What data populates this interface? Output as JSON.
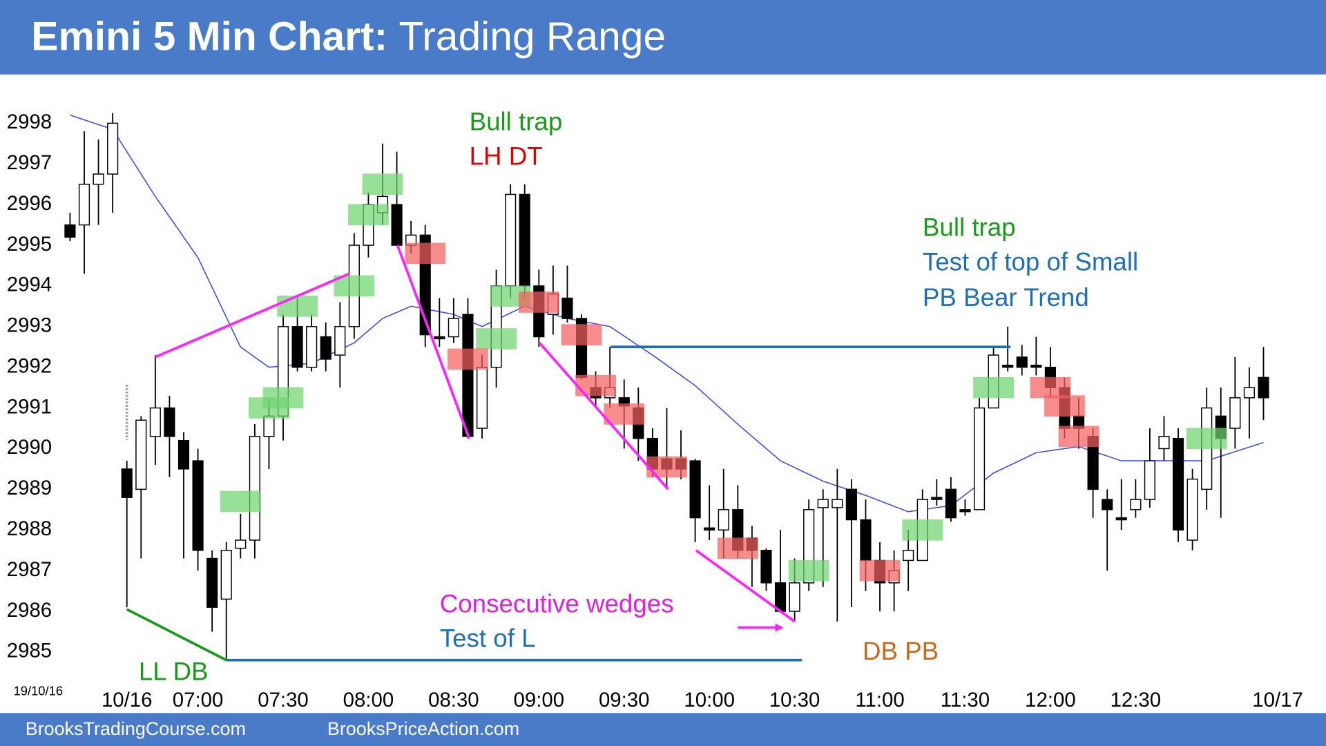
{
  "header": {
    "title_bold": "Emini 5 Min Chart:",
    "title_rest": "Trading Range"
  },
  "chart_data": {
    "type": "candlestick",
    "date_stamp": "19/10/16",
    "xlim": [
      -8.93,
      84.4
    ],
    "ylim": [
      2983.5,
      2998.95
    ],
    "yticks": [
      2985,
      2986,
      2987,
      2988,
      2989,
      2990,
      2991,
      2992,
      2993,
      2994,
      2995,
      2996,
      2997,
      2998
    ],
    "xticks": [
      {
        "value": 0,
        "label": "10/16"
      },
      {
        "value": 5,
        "label": "07:00"
      },
      {
        "value": 11,
        "label": "07:30"
      },
      {
        "value": 17,
        "label": "08:00"
      },
      {
        "value": 23,
        "label": "08:30"
      },
      {
        "value": 29,
        "label": "09:00"
      },
      {
        "value": 35,
        "label": "09:30"
      },
      {
        "value": 41,
        "label": "10:00"
      },
      {
        "value": 47,
        "label": "10:30"
      },
      {
        "value": 53,
        "label": "11:00"
      },
      {
        "value": 59,
        "label": "11:30"
      },
      {
        "value": 65,
        "label": "12:00"
      },
      {
        "value": 71,
        "label": "12:30"
      },
      {
        "value": 81,
        "label": "10/17"
      }
    ],
    "x": [
      -4,
      -3,
      -2,
      -1,
      0,
      1,
      2,
      3,
      4,
      5,
      6,
      7,
      8,
      9,
      10,
      11,
      12,
      13,
      14,
      15,
      16,
      17,
      18,
      19,
      20,
      21,
      22,
      23,
      24,
      25,
      26,
      27,
      28,
      29,
      30,
      31,
      32,
      33,
      34,
      35,
      36,
      37,
      38,
      39,
      40,
      41,
      42,
      43,
      44,
      45,
      46,
      47,
      48,
      49,
      50,
      51,
      52,
      53,
      54,
      55,
      56,
      57,
      58,
      59,
      60,
      61,
      62,
      63,
      64,
      65,
      66,
      67,
      68,
      69,
      70,
      71,
      72,
      73,
      74,
      75,
      76,
      77,
      78,
      79,
      80
    ],
    "open": [
      2995.5,
      2995.5,
      2996.5,
      2996.75,
      2989.5,
      2989,
      2990.3,
      2991,
      2990.2,
      2989.7,
      2987.3,
      2986.3,
      2987.55,
      2987.75,
      2990.3,
      2990.8,
      2993,
      2992,
      2992.75,
      2992.3,
      2993,
      2995,
      2995.8,
      2996,
      2995,
      2995.25,
      2992.75,
      2992.75,
      2993.3,
      2990.5,
      2992,
      2994,
      2996.25,
      2994,
      2993.3,
      2993.7,
      2993.2,
      2991.5,
      2991.25,
      2991.25,
      2991,
      2990.25,
      2989.75,
      2989.75,
      2989.7,
      2988.05,
      2988,
      2988.5,
      2987.8,
      2987.5,
      2986.7,
      2986,
      2986.7,
      2988.55,
      2988.55,
      2989,
      2988.25,
      2987.25,
      2986.7,
      2987.25,
      2987.25,
      2988.8,
      2989,
      2988.5,
      2988.5,
      2991,
      2992.05,
      2992.25,
      2992.05,
      2992,
      2991.5,
      2990.8,
      2990.3,
      2988.75,
      2988.3,
      2988.5,
      2988.75,
      2990,
      2990.25,
      2987.75,
      2989,
      2990.8,
      2990.5,
      2991.25,
      2991.75
    ],
    "high": [
      2995.8,
      2997.8,
      2997.6,
      2998.25,
      2989.7,
      2990.8,
      2992.3,
      2991.3,
      2990.4,
      2990,
      2987.5,
      2987.7,
      2988.4,
      2990.6,
      2991.25,
      2993.3,
      2993.7,
      2993.3,
      2993.1,
      2993.6,
      2995.3,
      2996.3,
      2997.5,
      2997.3,
      2995.6,
      2995.5,
      2993.7,
      2993.7,
      2993.7,
      2992.3,
      2994.4,
      2996.5,
      2996.5,
      2994.4,
      2994.5,
      2994.5,
      2993.3,
      2991.9,
      2992.5,
      2991.7,
      2991.5,
      2990.5,
      2991,
      2990.45,
      2989.75,
      2989.1,
      2989.5,
      2989.1,
      2988.1,
      2987.55,
      2988,
      2987.3,
      2988.75,
      2989,
      2989.5,
      2989.25,
      2988.75,
      2987.7,
      2987.5,
      2988,
      2989,
      2989.25,
      2989.3,
      2988.75,
      2991.25,
      2992.5,
      2993,
      2992.55,
      2992.75,
      2992.5,
      2991.75,
      2991.25,
      2990.5,
      2989,
      2989.25,
      2989.25,
      2990.5,
      2990.8,
      2990.5,
      2989.5,
      2991.5,
      2991.5,
      2992.25,
      2992,
      2992.5
    ],
    "low": [
      2995.1,
      2994.3,
      2995.5,
      2995.8,
      2986.1,
      2987.3,
      2989.6,
      2989.3,
      2987.3,
      2987,
      2985.5,
      2984.8,
      2987.3,
      2987.3,
      2989.5,
      2990.2,
      2991.9,
      2991.9,
      2991.9,
      2991.5,
      2992.7,
      2994.7,
      2995.5,
      2995,
      2994.8,
      2992.5,
      2992.5,
      2992.6,
      2990.25,
      2990.25,
      2991.5,
      2993.7,
      2993.7,
      2992.5,
      2992.8,
      2993.1,
      2991.7,
      2991,
      2991,
      2990,
      2989.7,
      2989.3,
      2989,
      2989.25,
      2987.7,
      2987.75,
      2987.3,
      2987.3,
      2986.6,
      2986.5,
      2986,
      2985.75,
      2986.5,
      2986.6,
      2985.75,
      2986.1,
      2986.5,
      2986,
      2986,
      2986.5,
      2987.25,
      2988.6,
      2988.2,
      2988.35,
      2988.5,
      2991,
      2991.9,
      2991.8,
      2991.8,
      2991.25,
      2990.25,
      2990,
      2988.3,
      2987,
      2988,
      2988.3,
      2988.55,
      2989.7,
      2987.7,
      2987.5,
      2988.5,
      2988.3,
      2990,
      2990.25,
      2990.7
    ],
    "close": [
      2995.2,
      2996.5,
      2996.75,
      2998,
      2988.8,
      2990.7,
      2991,
      2990.3,
      2989.5,
      2987.5,
      2986.1,
      2987.5,
      2987.75,
      2990.3,
      2990.8,
      2993,
      2992,
      2993,
      2992.2,
      2993,
      2995,
      2996,
      2996.2,
      2995,
      2995.25,
      2992.8,
      2992.7,
      2993.2,
      2990.3,
      2992,
      2994,
      2996.25,
      2994,
      2992.75,
      2993.8,
      2993.2,
      2991.75,
      2991.25,
      2991.5,
      2991.05,
      2990.25,
      2989.5,
      2989.5,
      2989.5,
      2988.3,
      2988,
      2988.5,
      2987.5,
      2987.5,
      2986.7,
      2986,
      2986.7,
      2988.5,
      2988.75,
      2988.75,
      2988.25,
      2987.25,
      2986.7,
      2987,
      2987.5,
      2988.75,
      2988.75,
      2988.3,
      2988.45,
      2991,
      2992.3,
      2992,
      2992,
      2992,
      2991.5,
      2990.5,
      2990.5,
      2989,
      2988.5,
      2988.25,
      2988.75,
      2989.7,
      2990.3,
      2988,
      2989.25,
      2991,
      2990.25,
      2991.25,
      2991.5,
      2991.25
    ],
    "ema": {
      "color": "#3d4fe6",
      "x": [
        -4,
        -1,
        2,
        5,
        8,
        10,
        13,
        16,
        18,
        20,
        23,
        25,
        28,
        31,
        34,
        37,
        40,
        43,
        46,
        49,
        52,
        55,
        58,
        61,
        64,
        67,
        70,
        73,
        76,
        80
      ],
      "values": [
        2998.2,
        2997.85,
        2996.2,
        2994.7,
        2992.5,
        2992,
        2992.1,
        2992.6,
        2993.2,
        2993.5,
        2993.3,
        2993,
        2993.5,
        2993.2,
        2993,
        2992.3,
        2991.55,
        2990.6,
        2989.7,
        2989.2,
        2988.85,
        2988.45,
        2988.6,
        2989.4,
        2989.9,
        2990.05,
        2989.7,
        2989.7,
        2989.7,
        2990.15
      ]
    },
    "highlights": [
      {
        "x": 8,
        "y": 2988.7,
        "color": "#6fd46f"
      },
      {
        "x": 10,
        "y": 2991,
        "color": "#6fd46f"
      },
      {
        "x": 11,
        "y": 2991.25,
        "color": "#6fd46f"
      },
      {
        "x": 12,
        "y": 2993.5,
        "color": "#6fd46f"
      },
      {
        "x": 16,
        "y": 2994,
        "color": "#6fd46f"
      },
      {
        "x": 17,
        "y": 2995.75,
        "color": "#6fd46f"
      },
      {
        "x": 18,
        "y": 2996.5,
        "color": "#6fd46f"
      },
      {
        "x": 26,
        "y": 2992.7,
        "color": "#6fd46f"
      },
      {
        "x": 27,
        "y": 2993.75,
        "color": "#6fd46f"
      },
      {
        "x": 48,
        "y": 2987,
        "color": "#6fd46f"
      },
      {
        "x": 56,
        "y": 2988,
        "color": "#6fd46f"
      },
      {
        "x": 61,
        "y": 2991.5,
        "color": "#6fd46f"
      },
      {
        "x": 76,
        "y": 2990.25,
        "color": "#6fd46f"
      },
      {
        "x": 21,
        "y": 2994.8,
        "color": "#f25f5f"
      },
      {
        "x": 24,
        "y": 2992.2,
        "color": "#f25f5f"
      },
      {
        "x": 29,
        "y": 2993.6,
        "color": "#f25f5f"
      },
      {
        "x": 32,
        "y": 2992.8,
        "color": "#f25f5f"
      },
      {
        "x": 33,
        "y": 2991.55,
        "color": "#f25f5f"
      },
      {
        "x": 35,
        "y": 2990.85,
        "color": "#f25f5f"
      },
      {
        "x": 38,
        "y": 2989.55,
        "color": "#f25f5f"
      },
      {
        "x": 43,
        "y": 2987.55,
        "color": "#f25f5f"
      },
      {
        "x": 53,
        "y": 2987,
        "color": "#f25f5f"
      },
      {
        "x": 65,
        "y": 2991.5,
        "color": "#f25f5f"
      },
      {
        "x": 66,
        "y": 2991.05,
        "color": "#f25f5f"
      },
      {
        "x": 67,
        "y": 2990.3,
        "color": "#f25f5f"
      }
    ],
    "lines": [
      {
        "x": [
          2,
          15.65
        ],
        "values": [
          2992.25,
          2994.3
        ],
        "color": "#ff22ff"
      },
      {
        "x": [
          19.05,
          24.1
        ],
        "values": [
          2995,
          2990.25
        ],
        "color": "#ff22ff"
      },
      {
        "x": [
          29.05,
          38.1
        ],
        "values": [
          2992.6,
          2989
        ],
        "color": "#ff22ff"
      },
      {
        "x": [
          40.06,
          47
        ],
        "values": [
          2987.5,
          2985.75
        ],
        "color": "#ff22ff"
      },
      {
        "x": [
          43,
          46.1
        ],
        "values": [
          2985.6,
          2985.6
        ],
        "color": "#ff22ff",
        "arrow": true
      },
      {
        "x": [
          0,
          7
        ],
        "values": [
          2986.05,
          2984.8
        ],
        "color": "#1a9a1a"
      },
      {
        "x": [
          7,
          47.5
        ],
        "values": [
          2984.8,
          2984.8
        ],
        "color": "#1f6fb5"
      },
      {
        "x": [
          34.05,
          62.2
        ],
        "values": [
          2992.5,
          2992.5
        ],
        "color": "#1f6fb5"
      }
    ],
    "annotations": [
      {
        "text": "Bull trap",
        "color": "#1a9a1a"
      },
      {
        "text": "LH DT",
        "color": "#e00000"
      },
      {
        "text": "Bull trap",
        "color": "#1a9a1a"
      },
      {
        "text": "Test of top of Small",
        "color": "#1f6fb5"
      },
      {
        "text": "PB Bear Trend",
        "color": "#1f6fb5"
      },
      {
        "text": "Consecutive wedges",
        "color": "#e020e0"
      },
      {
        "text": "Test of L",
        "color": "#1f6fb5"
      },
      {
        "text": "DB PB",
        "color": "#c8691c"
      },
      {
        "text": "LL DB",
        "color": "#1a9a1a"
      }
    ]
  },
  "footer": {
    "left": "BrooksTradingCourse.com",
    "right": "BrooksPriceAction.com"
  }
}
